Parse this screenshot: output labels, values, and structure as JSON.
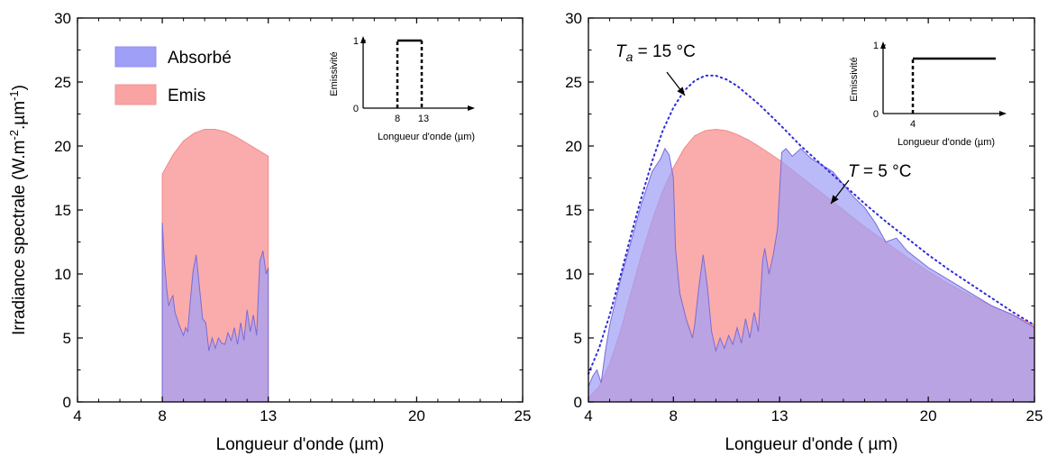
{
  "chart_data": [
    {
      "type": "area",
      "ylabel_main": "Irradiance spectrale (W.m",
      "ylabel_sup1": "-2",
      "ylabel_mid": ".µm",
      "ylabel_sup2": "-1",
      "ylabel_end": ")",
      "xlabel": "Longueur d'onde (µm)",
      "xlim": [
        4,
        25
      ],
      "ylim": [
        0,
        30
      ],
      "xticks": [
        "4",
        "8",
        "13",
        "20",
        "25"
      ],
      "yticks": [
        "0",
        "5",
        "10",
        "15",
        "20",
        "25",
        "30"
      ],
      "legend": {
        "position": "top-left",
        "items": [
          {
            "label": "Absorbé",
            "color": "#9f9ff7"
          },
          {
            "label": "Emis",
            "color": "#f9a3a3"
          }
        ]
      },
      "series": [
        {
          "name": "Emis",
          "color": "#f9a3a3",
          "x": [
            8,
            8.5,
            9,
            9.5,
            10,
            10.5,
            11,
            11.5,
            12,
            12.5,
            13
          ],
          "y": [
            17.8,
            19.3,
            20.4,
            21.0,
            21.3,
            21.3,
            21.1,
            20.7,
            20.2,
            19.7,
            19.2
          ]
        },
        {
          "name": "Absorbé",
          "color": "#9f9ff7",
          "x": [
            8,
            8.1,
            8.2,
            8.3,
            8.4,
            8.5,
            8.6,
            8.8,
            9.0,
            9.1,
            9.2,
            9.3,
            9.45,
            9.6,
            9.75,
            9.9,
            10.05,
            10.2,
            10.35,
            10.5,
            10.65,
            10.8,
            10.95,
            11.1,
            11.25,
            11.4,
            11.55,
            11.7,
            11.85,
            12.0,
            12.15,
            12.3,
            12.45,
            12.6,
            12.75,
            12.9,
            13.0
          ],
          "y": [
            14.0,
            11.0,
            9.0,
            7.5,
            8.0,
            8.3,
            7.0,
            6.0,
            5.2,
            5.8,
            5.5,
            7.5,
            10.2,
            11.5,
            9.0,
            6.5,
            6.2,
            4.0,
            5.0,
            4.2,
            5.0,
            4.6,
            4.5,
            5.4,
            4.8,
            5.8,
            4.5,
            6.2,
            4.8,
            7.2,
            5.5,
            6.8,
            5.2,
            11.0,
            11.8,
            10.0,
            10.5
          ]
        }
      ],
      "inset": {
        "ylabel": "Emissivité",
        "xlabel": "Longueur d'onde (µm)",
        "yticks": [
          "0",
          "1"
        ],
        "xticks": [
          "8",
          "13"
        ]
      }
    },
    {
      "type": "area",
      "xlabel": "Longueur d'onde ( µm)",
      "xlim": [
        4,
        25
      ],
      "ylim": [
        0,
        30
      ],
      "xticks": [
        "4",
        "8",
        "13",
        "20",
        "25"
      ],
      "yticks": [
        "0",
        "5",
        "10",
        "15",
        "20",
        "25",
        "30"
      ],
      "annotations": [
        {
          "prefix": "T",
          "sub": "a",
          "suffix": " = 15 °C"
        },
        {
          "prefix": "T",
          "sub": "",
          "suffix": " = 5 °C"
        }
      ],
      "series": [
        {
          "name": "Emis",
          "color": "#f9a3a3",
          "x": [
            4,
            4.5,
            5,
            5.5,
            6,
            6.5,
            7,
            7.5,
            8,
            8.5,
            9,
            9.5,
            10,
            10.5,
            11,
            11.5,
            12,
            13,
            14,
            15,
            16,
            17,
            18,
            19,
            20,
            21,
            22,
            23,
            24,
            25
          ],
          "y": [
            0.3,
            1.2,
            3.0,
            5.5,
            8.5,
            11.5,
            14.2,
            16.5,
            18.3,
            19.8,
            20.8,
            21.2,
            21.3,
            21.2,
            20.9,
            20.5,
            20.0,
            18.9,
            17.6,
            16.3,
            15.0,
            13.7,
            12.5,
            11.3,
            10.2,
            9.2,
            8.3,
            7.5,
            6.8,
            6.0
          ]
        },
        {
          "name": "Absorbé",
          "color": "#9f9ff7",
          "x": [
            4,
            4.2,
            4.4,
            4.6,
            4.8,
            5.0,
            5.5,
            6.0,
            6.5,
            7.0,
            7.4,
            7.6,
            7.8,
            8.0,
            8.1,
            8.3,
            8.6,
            8.9,
            9.0,
            9.2,
            9.4,
            9.6,
            9.8,
            10.0,
            10.2,
            10.4,
            10.6,
            10.8,
            11.0,
            11.2,
            11.4,
            11.6,
            11.8,
            12.0,
            12.2,
            12.3,
            12.5,
            12.7,
            12.9,
            13.1,
            13.3,
            13.6,
            14.0,
            14.5,
            15,
            15.5,
            16,
            16.5,
            17,
            17.5,
            18,
            18.5,
            19,
            20,
            21,
            22,
            23,
            24,
            25
          ],
          "y": [
            1.2,
            2.0,
            2.5,
            1.5,
            4.0,
            6.0,
            9.5,
            12.5,
            15.5,
            18.0,
            19.0,
            19.8,
            19.3,
            17.5,
            12.0,
            8.5,
            6.5,
            5.0,
            6.0,
            9.0,
            11.5,
            9.0,
            5.5,
            4.0,
            5.0,
            4.2,
            5.2,
            4.5,
            5.8,
            4.6,
            6.5,
            5.0,
            7.0,
            5.5,
            11.0,
            12.0,
            10.0,
            11.5,
            13.5,
            19.5,
            19.8,
            19.2,
            19.8,
            19.0,
            18.5,
            18.0,
            17.0,
            16.0,
            15.2,
            14.0,
            12.5,
            12.8,
            11.8,
            10.5,
            9.5,
            8.5,
            7.5,
            6.8,
            5.8
          ]
        },
        {
          "name": "Ta = 15 °C",
          "color": "#2b2bd8",
          "style": "dotted",
          "x": [
            4,
            4.5,
            5,
            5.5,
            6,
            6.5,
            7,
            7.5,
            8,
            8.5,
            9,
            9.5,
            10,
            10.5,
            11,
            11.5,
            12,
            13,
            14,
            15,
            16,
            17,
            18,
            19,
            20,
            21,
            22,
            23,
            24,
            25
          ],
          "y": [
            2.2,
            4.2,
            6.8,
            9.8,
            13.0,
            16.0,
            18.8,
            21.2,
            23.0,
            24.3,
            25.1,
            25.5,
            25.5,
            25.2,
            24.7,
            24.0,
            23.3,
            21.7,
            20.0,
            18.5,
            17.0,
            15.5,
            14.1,
            12.8,
            11.5,
            10.3,
            9.2,
            8.1,
            7.0,
            6.0
          ]
        }
      ],
      "inset": {
        "ylabel": "Emissivité",
        "xlabel": "Longueur d'onde (µm)",
        "yticks": [
          "0",
          "1"
        ],
        "xticks": [
          "4"
        ]
      }
    }
  ]
}
